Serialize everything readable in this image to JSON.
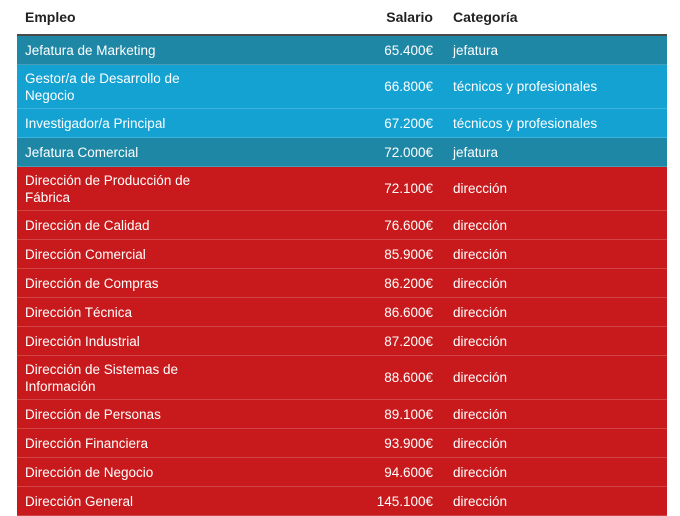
{
  "table": {
    "headers": {
      "empleo": "Empleo",
      "salario": "Salario",
      "categoria": "Categoría"
    },
    "category_colors": {
      "jefatura": "#1f87a6",
      "técnicos y profesionales": "#13a2d2",
      "dirección": "#c81a1c"
    },
    "rows": [
      {
        "empleo": "Jefatura de Marketing",
        "salario": "65.400€",
        "categoria": "jefatura"
      },
      {
        "empleo": "Gestor/a de Desarrollo de Negocio",
        "salario": "66.800€",
        "categoria": "técnicos y profesionales"
      },
      {
        "empleo": "Investigador/a Principal",
        "salario": "67.200€",
        "categoria": "técnicos y profesionales"
      },
      {
        "empleo": "Jefatura Comercial",
        "salario": "72.000€",
        "categoria": "jefatura"
      },
      {
        "empleo": "Dirección de Producción de Fábrica",
        "salario": "72.100€",
        "categoria": "dirección"
      },
      {
        "empleo": "Dirección de Calidad",
        "salario": "76.600€",
        "categoria": "dirección"
      },
      {
        "empleo": "Dirección Comercial",
        "salario": "85.900€",
        "categoria": "dirección"
      },
      {
        "empleo": "Dirección de Compras",
        "salario": "86.200€",
        "categoria": "dirección"
      },
      {
        "empleo": "Dirección Técnica",
        "salario": "86.600€",
        "categoria": "dirección"
      },
      {
        "empleo": "Dirección Industrial",
        "salario": "87.200€",
        "categoria": "dirección"
      },
      {
        "empleo": "Dirección de Sistemas de Información",
        "salario": "88.600€",
        "categoria": "dirección"
      },
      {
        "empleo": "Dirección de Personas",
        "salario": "89.100€",
        "categoria": "dirección"
      },
      {
        "empleo": "Dirección Financiera",
        "salario": "93.900€",
        "categoria": "dirección"
      },
      {
        "empleo": "Dirección de Negocio",
        "salario": "94.600€",
        "categoria": "dirección"
      },
      {
        "empleo": "Dirección General",
        "salario": "145.100€",
        "categoria": "dirección"
      }
    ]
  }
}
